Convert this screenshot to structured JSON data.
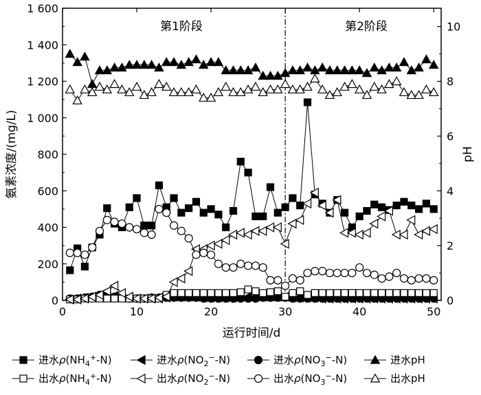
{
  "chart_data": {
    "type": "line",
    "xlabel": "运行时间/d",
    "ylabel_left": "氨素浓度/(mg/L)",
    "ylabel_right": "pH",
    "xlim": [
      0,
      51
    ],
    "ylim_left": [
      0,
      1600
    ],
    "ylim_right": [
      0,
      10.67
    ],
    "x_ticks": [
      "0",
      "10",
      "20",
      "30",
      "40",
      "50"
    ],
    "y_left_ticks": [
      "0",
      "200",
      "400",
      "600",
      "800",
      "1 000",
      "1 200",
      "1 400",
      "1 600"
    ],
    "y_right_ticks": [
      "0",
      "2",
      "4",
      "6",
      "8",
      "10"
    ],
    "stage_divider_x": 30,
    "stage_labels": [
      "第1阶段",
      "第2阶段"
    ],
    "grid": false,
    "legend_position": "bottom",
    "x": [
      1,
      2,
      3,
      4,
      5,
      6,
      7,
      8,
      9,
      10,
      11,
      12,
      13,
      14,
      15,
      16,
      17,
      18,
      19,
      20,
      21,
      22,
      23,
      24,
      25,
      26,
      27,
      28,
      29,
      30,
      31,
      32,
      33,
      34,
      35,
      36,
      37,
      38,
      39,
      40,
      41,
      42,
      43,
      44,
      45,
      46,
      47,
      48,
      49,
      50
    ],
    "series": [
      {
        "name_parts": [
          [
            "进水",
            "n"
          ],
          [
            "ρ",
            "i"
          ],
          [
            "(NH",
            "n"
          ],
          [
            "4",
            "sub"
          ],
          [
            "+",
            "supr"
          ],
          [
            "-N)",
            "n"
          ]
        ],
        "marker": "square",
        "fill": "filled",
        "axis": "left",
        "values": [
          165,
          285,
          185,
          290,
          360,
          505,
          420,
          400,
          510,
          560,
          410,
          410,
          630,
          510,
          560,
          480,
          505,
          540,
          480,
          500,
          470,
          400,
          490,
          760,
          700,
          460,
          460,
          620,
          480,
          510,
          560,
          520,
          1085,
          580,
          530,
          480,
          550,
          480,
          400,
          460,
          490,
          525,
          510,
          495,
          520,
          540,
          520,
          500,
          530,
          500
        ]
      },
      {
        "name_parts": [
          [
            "进水",
            "n"
          ],
          [
            "ρ",
            "i"
          ],
          [
            "(NO",
            "n"
          ],
          [
            "2",
            "sub"
          ],
          [
            "−",
            "supr"
          ],
          [
            "-N)",
            "n"
          ]
        ],
        "marker": "triangle-left",
        "fill": "filled",
        "axis": "left",
        "values": [
          5,
          10,
          15,
          20,
          20,
          30,
          25,
          20,
          15,
          10,
          10,
          10,
          10,
          15,
          20,
          20,
          20,
          20,
          15,
          15,
          15,
          15,
          15,
          20,
          20,
          20,
          20,
          20,
          20,
          20,
          15,
          15,
          15,
          15,
          10,
          10,
          10,
          10,
          10,
          10,
          10,
          10,
          10,
          10,
          10,
          10,
          10,
          10,
          10,
          10
        ]
      },
      {
        "name_parts": [
          [
            "进水",
            "n"
          ],
          [
            "ρ",
            "i"
          ],
          [
            "(NO",
            "n"
          ],
          [
            "3",
            "sub"
          ],
          [
            "−",
            "supr"
          ],
          [
            "-N)",
            "n"
          ]
        ],
        "marker": "circle",
        "fill": "filled",
        "axis": "left",
        "values": [
          10,
          10,
          15,
          20,
          30,
          40,
          20,
          15,
          10,
          10,
          10,
          15,
          15,
          15,
          15,
          15,
          15,
          15,
          10,
          10,
          10,
          10,
          10,
          10,
          10,
          10,
          15,
          15,
          15,
          15,
          10,
          10,
          10,
          10,
          10,
          10,
          10,
          10,
          10,
          10,
          10,
          10,
          10,
          10,
          10,
          10,
          10,
          10,
          10,
          10
        ]
      },
      {
        "name_parts": [
          [
            "进水pH",
            "n"
          ]
        ],
        "marker": "triangle-up",
        "fill": "filled",
        "axis": "right",
        "values": [
          9.0,
          8.7,
          8.9,
          7.9,
          8.4,
          8.4,
          8.5,
          8.5,
          8.6,
          8.6,
          8.6,
          8.6,
          8.5,
          8.7,
          8.7,
          8.6,
          8.7,
          8.8,
          8.6,
          8.7,
          8.7,
          8.4,
          8.4,
          8.4,
          8.4,
          8.5,
          8.2,
          8.2,
          8.2,
          8.3,
          8.4,
          8.4,
          8.5,
          8.4,
          8.5,
          8.4,
          8.4,
          8.4,
          8.4,
          8.4,
          8.3,
          8.5,
          8.4,
          8.5,
          8.5,
          8.7,
          8.4,
          8.5,
          8.8,
          8.6
        ]
      },
      {
        "name_parts": [
          [
            "出水",
            "n"
          ],
          [
            "ρ",
            "i"
          ],
          [
            "(NH",
            "n"
          ],
          [
            "4",
            "sub"
          ],
          [
            "+",
            "supr"
          ],
          [
            "-N)",
            "n"
          ]
        ],
        "marker": "square",
        "fill": "open",
        "axis": "left",
        "values": [
          5,
          5,
          10,
          10,
          10,
          10,
          10,
          10,
          10,
          10,
          10,
          10,
          10,
          30,
          40,
          40,
          40,
          40,
          40,
          40,
          40,
          40,
          40,
          45,
          60,
          50,
          40,
          45,
          50,
          20,
          40,
          50,
          30,
          40,
          40,
          40,
          40,
          40,
          40,
          40,
          40,
          40,
          40,
          40,
          40,
          40,
          40,
          40,
          40,
          40
        ]
      },
      {
        "name_parts": [
          [
            "出水",
            "n"
          ],
          [
            "ρ",
            "i"
          ],
          [
            "(NO",
            "n"
          ],
          [
            "2",
            "sub"
          ],
          [
            "−",
            "supr"
          ],
          [
            "-N)",
            "n"
          ]
        ],
        "marker": "triangle-left",
        "fill": "open",
        "axis": "left",
        "values": [
          5,
          5,
          10,
          20,
          30,
          50,
          80,
          40,
          20,
          10,
          10,
          10,
          15,
          20,
          100,
          120,
          160,
          280,
          280,
          300,
          310,
          330,
          360,
          370,
          360,
          380,
          380,
          400,
          400,
          310,
          420,
          440,
          530,
          590,
          520,
          480,
          550,
          370,
          370,
          360,
          370,
          420,
          460,
          490,
          360,
          360,
          440,
          360,
          380,
          390
        ]
      },
      {
        "name_parts": [
          [
            "出水",
            "n"
          ],
          [
            "ρ",
            "i"
          ],
          [
            "(NO",
            "n"
          ],
          [
            "3",
            "sub"
          ],
          [
            "−",
            "supr"
          ],
          [
            "-N)",
            "n"
          ]
        ],
        "marker": "circle",
        "fill": "open",
        "axis": "left",
        "values": [
          260,
          260,
          250,
          290,
          380,
          440,
          430,
          420,
          400,
          390,
          370,
          360,
          500,
          480,
          410,
          380,
          340,
          250,
          260,
          250,
          200,
          180,
          180,
          200,
          190,
          190,
          180,
          110,
          110,
          80,
          120,
          110,
          150,
          160,
          160,
          150,
          150,
          150,
          150,
          180,
          150,
          140,
          120,
          130,
          150,
          120,
          110,
          120,
          120,
          110
        ]
      },
      {
        "name_parts": [
          [
            "出水pH",
            "n"
          ]
        ],
        "marker": "triangle-up",
        "fill": "open",
        "axis": "right",
        "values": [
          7.7,
          7.3,
          7.7,
          7.6,
          7.8,
          7.7,
          7.9,
          7.7,
          7.6,
          7.8,
          7.5,
          7.6,
          7.9,
          7.8,
          7.6,
          7.6,
          7.6,
          7.7,
          7.4,
          7.4,
          7.6,
          7.8,
          7.6,
          7.6,
          7.7,
          7.8,
          7.6,
          7.7,
          7.7,
          7.9,
          7.7,
          7.7,
          7.8,
          8.1,
          7.7,
          7.5,
          7.6,
          7.8,
          7.9,
          7.7,
          7.5,
          7.8,
          7.7,
          7.9,
          8.0,
          7.6,
          7.5,
          7.5,
          7.7,
          7.6
        ]
      }
    ]
  },
  "colors": {
    "ink": "#000000",
    "background": "#ffffff"
  }
}
